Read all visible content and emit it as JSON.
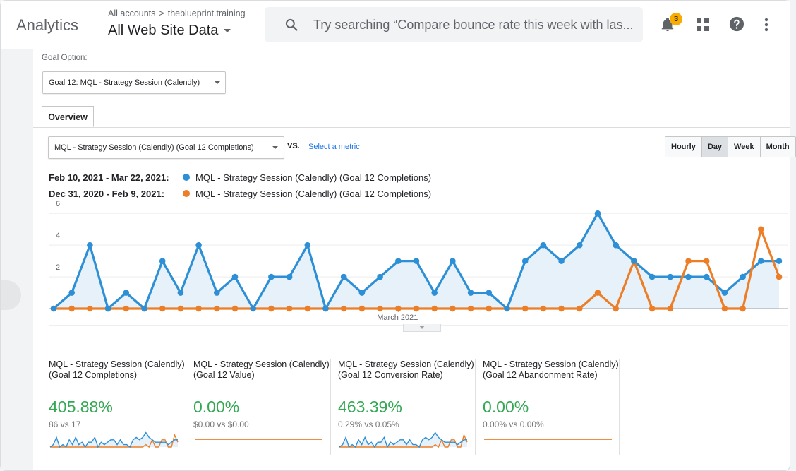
{
  "header": {
    "app_name": "Analytics",
    "breadcrumb": [
      "All accounts",
      "theblueprint.training"
    ],
    "breadcrumb_sep": ">",
    "view_name": "All Web Site Data",
    "search_placeholder": "Try searching “Compare bounce rate this week with las...",
    "notification_count": "3"
  },
  "goal_option": {
    "label": "Goal Option:",
    "selected": "Goal 12: MQL - Strategy Session (Calendly)"
  },
  "tabs": {
    "overview": "Overview"
  },
  "metric_selector": {
    "selected": "MQL - Strategy Session (Calendly) (Goal 12 Completions)",
    "vs_label": "VS.",
    "select_metric": "Select a metric"
  },
  "granularity": {
    "options": [
      "Hourly",
      "Day",
      "Week",
      "Month"
    ],
    "selected": "Day"
  },
  "colors": {
    "current": "#2d8fd5",
    "previous": "#ec7e27",
    "positive": "#34a853",
    "fill": "#e7f1f9"
  },
  "chart_data": {
    "type": "line",
    "legend": [
      {
        "range": "Feb 10, 2021 - Mar 22, 2021:",
        "metric": "MQL - Strategy Session (Calendly) (Goal 12 Completions)"
      },
      {
        "range": "Dec 31, 2020 - Feb 9, 2021:",
        "metric": "MQL - Strategy Session (Calendly) (Goal 12 Completions)"
      }
    ],
    "y_ticks": [
      "6",
      "4",
      "2"
    ],
    "ylim": [
      0,
      6.5
    ],
    "x_label": "March 2021",
    "series": [
      {
        "name": "Feb 10, 2021 - Mar 22, 2021",
        "values": [
          0,
          1,
          4,
          0,
          1,
          0,
          3,
          1,
          4,
          1,
          2,
          0,
          2,
          2,
          4,
          0,
          2,
          1,
          2,
          3,
          3,
          1,
          3,
          1,
          1,
          0,
          3,
          4,
          3,
          4,
          6,
          4,
          3,
          2,
          2,
          2,
          2,
          1,
          2,
          3,
          3
        ]
      },
      {
        "name": "Dec 31, 2020 - Feb 9, 2021",
        "values": [
          0,
          0,
          0,
          0,
          0,
          0,
          0,
          0,
          0,
          0,
          0,
          0,
          0,
          0,
          0,
          0,
          0,
          0,
          0,
          0,
          0,
          0,
          0,
          0,
          0,
          0,
          0,
          0,
          0,
          0,
          1,
          0,
          3,
          0,
          0,
          3,
          3,
          0,
          0,
          5,
          2
        ]
      }
    ]
  },
  "scorecards": [
    {
      "title": "MQL - Strategy Session (Calendly) (Goal 12 Completions)",
      "value": "405.88%",
      "compare": "86 vs 17",
      "spark": "active"
    },
    {
      "title": "MQL - Strategy Session (Calendly) (Goal 12 Value)",
      "value": "0.00%",
      "compare": "$0.00 vs $0.00",
      "spark": "flat"
    },
    {
      "title": "MQL - Strategy Session (Calendly) (Goal 12 Conversion Rate)",
      "value": "463.39%",
      "compare": "0.29% vs 0.05%",
      "spark": "active"
    },
    {
      "title": "MQL - Strategy Session (Calendly) (Goal 12 Abandonment Rate)",
      "value": "0.00%",
      "compare": "0.00% vs 0.00%",
      "spark": "flat"
    }
  ]
}
